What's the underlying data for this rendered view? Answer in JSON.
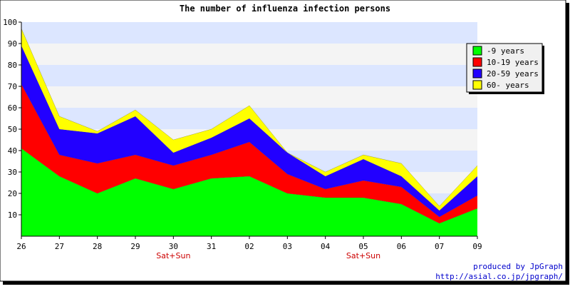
{
  "chart_data": {
    "type": "area",
    "stacked": true,
    "title": "The number of influenza infection persons",
    "xlabel": "",
    "ylabel": "",
    "categories": [
      "26",
      "27",
      "28",
      "29",
      "30",
      "31",
      "02",
      "03",
      "04",
      "05",
      "06",
      "07",
      "09"
    ],
    "x_annotations": [
      {
        "category": "30",
        "text": "Sat+Sun"
      },
      {
        "category": "05",
        "text": "Sat+Sun"
      }
    ],
    "ylim": [
      0,
      100
    ],
    "yticks": [
      10,
      20,
      30,
      40,
      50,
      60,
      70,
      80,
      90,
      100
    ],
    "legend_position": "top-right",
    "band_colors": [
      "#f4f4f4",
      "#dce6ff"
    ],
    "series": [
      {
        "name": "-9 years",
        "color": "#00ff00",
        "values": [
          41,
          28,
          20,
          27,
          22,
          27,
          28,
          20,
          18,
          18,
          15,
          6,
          13
        ]
      },
      {
        "name": "10-19 years",
        "color": "#ff0000",
        "values": [
          30,
          10,
          14,
          11,
          11,
          11,
          16,
          9,
          4,
          8,
          8,
          3,
          6
        ]
      },
      {
        "name": "20-59 years",
        "color": "#2200ff",
        "values": [
          18,
          12,
          14,
          18,
          6,
          8,
          11,
          10,
          6,
          10,
          5,
          3,
          9
        ]
      },
      {
        "name": "60- years",
        "color": "#ffff00",
        "values": [
          8,
          6,
          1,
          3,
          6,
          4,
          6,
          0,
          2,
          2,
          6,
          2,
          5
        ]
      }
    ]
  },
  "credits": {
    "line1": "produced by JpGraph",
    "line2": "http://asial.co.jp/jpgraph/"
  }
}
